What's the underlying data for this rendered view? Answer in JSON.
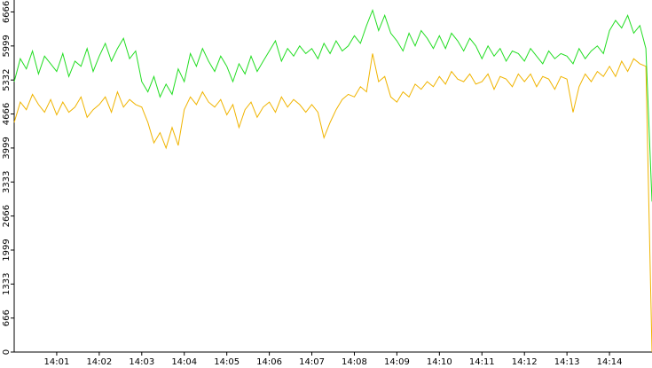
{
  "chart_data": {
    "type": "line",
    "x": [
      0,
      0.143,
      0.286,
      0.429,
      0.571,
      0.714,
      0.857,
      1,
      1.143,
      1.286,
      1.429,
      1.571,
      1.714,
      1.857,
      2,
      2.143,
      2.286,
      2.429,
      2.571,
      2.714,
      2.857,
      3,
      3.143,
      3.286,
      3.429,
      3.571,
      3.714,
      3.857,
      4,
      4.143,
      4.286,
      4.429,
      4.571,
      4.714,
      4.857,
      5,
      5.143,
      5.286,
      5.429,
      5.571,
      5.714,
      5.857,
      6,
      6.143,
      6.286,
      6.429,
      6.571,
      6.714,
      6.857,
      7,
      7.143,
      7.286,
      7.429,
      7.571,
      7.714,
      7.857,
      8,
      8.143,
      8.286,
      8.429,
      8.571,
      8.714,
      8.857,
      9,
      9.143,
      9.286,
      9.429,
      9.571,
      9.714,
      9.857,
      10,
      10.143,
      10.286,
      10.429,
      10.571,
      10.714,
      10.857,
      11,
      11.143,
      11.286,
      11.429,
      11.571,
      11.714,
      11.857,
      12,
      12.143,
      12.286,
      12.429,
      12.571,
      12.714,
      12.857,
      13,
      13.143,
      13.286,
      13.429,
      13.571,
      13.714,
      13.857,
      14,
      14.143,
      14.286,
      14.429,
      14.571,
      14.714,
      14.857,
      15
    ],
    "series": [
      {
        "color": "#22dd22",
        "values": [
          5300,
          5750,
          5550,
          5900,
          5450,
          5800,
          5650,
          5500,
          5850,
          5400,
          5700,
          5600,
          5950,
          5500,
          5800,
          6050,
          5700,
          5950,
          6150,
          5750,
          5900,
          5300,
          5100,
          5400,
          5000,
          5250,
          5050,
          5550,
          5300,
          5850,
          5600,
          5950,
          5700,
          5500,
          5800,
          5600,
          5300,
          5650,
          5450,
          5800,
          5500,
          5700,
          5900,
          6100,
          5700,
          5950,
          5800,
          6000,
          5850,
          5950,
          5750,
          6050,
          5850,
          6100,
          5900,
          6000,
          6200,
          6050,
          6400,
          6700,
          6300,
          6600,
          6250,
          6100,
          5900,
          6250,
          6000,
          6300,
          6150,
          5950,
          6200,
          5950,
          6250,
          6100,
          5900,
          6150,
          6000,
          5750,
          6000,
          5800,
          5950,
          5700,
          5900,
          5850,
          5700,
          5950,
          5800,
          5650,
          5900,
          5750,
          5850,
          5800,
          5650,
          5950,
          5750,
          5900,
          6000,
          5850,
          6300,
          6500,
          6350,
          6600,
          6250,
          6400,
          5950,
          2950
        ]
      },
      {
        "color": "#f0b400",
        "values": [
          4500,
          4900,
          4750,
          5050,
          4850,
          4700,
          4950,
          4650,
          4900,
          4700,
          4800,
          5000,
          4600,
          4750,
          4850,
          5000,
          4700,
          5100,
          4800,
          4950,
          4850,
          4800,
          4500,
          4100,
          4300,
          4000,
          4400,
          4050,
          4750,
          5000,
          4850,
          5100,
          4900,
          4800,
          4950,
          4650,
          4850,
          4400,
          4750,
          4900,
          4600,
          4800,
          4900,
          4700,
          5000,
          4800,
          4950,
          4850,
          4700,
          4850,
          4700,
          4200,
          4500,
          4750,
          4950,
          5050,
          5000,
          5200,
          5100,
          5850,
          5300,
          5400,
          5000,
          4900,
          5100,
          5000,
          5250,
          5150,
          5300,
          5200,
          5400,
          5250,
          5500,
          5350,
          5300,
          5450,
          5250,
          5300,
          5450,
          5150,
          5400,
          5350,
          5200,
          5450,
          5300,
          5450,
          5200,
          5400,
          5350,
          5150,
          5400,
          5350,
          4700,
          5200,
          5450,
          5300,
          5500,
          5400,
          5600,
          5400,
          5700,
          5500,
          5750,
          5650,
          5600,
          0
        ]
      }
    ],
    "xlim": [
      0,
      15
    ],
    "xticks": [
      {
        "value": 1,
        "label": "14:01"
      },
      {
        "value": 2,
        "label": "14:02"
      },
      {
        "value": 3,
        "label": "14:03"
      },
      {
        "value": 4,
        "label": "14:04"
      },
      {
        "value": 5,
        "label": "14:05"
      },
      {
        "value": 6,
        "label": "14:06"
      },
      {
        "value": 7,
        "label": "14:07"
      },
      {
        "value": 8,
        "label": "14:08"
      },
      {
        "value": 9,
        "label": "14:09"
      },
      {
        "value": 10,
        "label": "14:10"
      },
      {
        "value": 11,
        "label": "14:11"
      },
      {
        "value": 12,
        "label": "14:12"
      },
      {
        "value": 13,
        "label": "14:13"
      },
      {
        "value": 14,
        "label": "14:14"
      }
    ],
    "ylim": [
      0,
      6900
    ],
    "yticks": [
      0,
      666,
      1333,
      1999,
      2666,
      3333,
      3999,
      4666,
      5332,
      5999,
      6666
    ]
  }
}
